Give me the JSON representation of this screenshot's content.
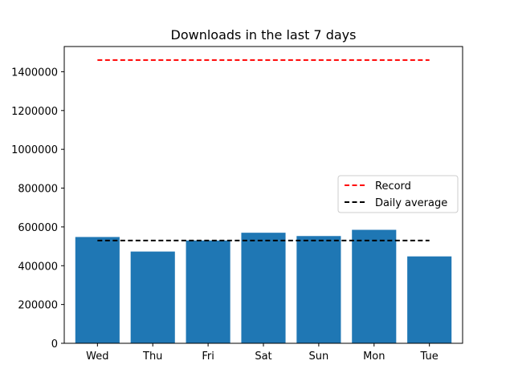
{
  "chart_data": {
    "type": "bar",
    "title": "Downloads in the last 7 days",
    "xlabel": "",
    "ylabel": "",
    "categories": [
      "Wed",
      "Thu",
      "Fri",
      "Sat",
      "Sun",
      "Mon",
      "Tue"
    ],
    "values": [
      548000,
      473000,
      530000,
      570000,
      553000,
      585000,
      448000
    ],
    "ylim": [
      0,
      1530000
    ],
    "yticks": [
      "0",
      "200000",
      "400000",
      "600000",
      "800000",
      "1000000",
      "1200000",
      "1400000"
    ],
    "reference_lines": [
      {
        "name": "Record",
        "value": 1460000,
        "color": "#ff0000",
        "style": "dashed"
      },
      {
        "name": "Daily average",
        "value": 530000,
        "color": "#000000",
        "style": "dashed"
      }
    ],
    "bar_color": "#1f77b4",
    "grid": false,
    "legend_position": "center-right"
  }
}
